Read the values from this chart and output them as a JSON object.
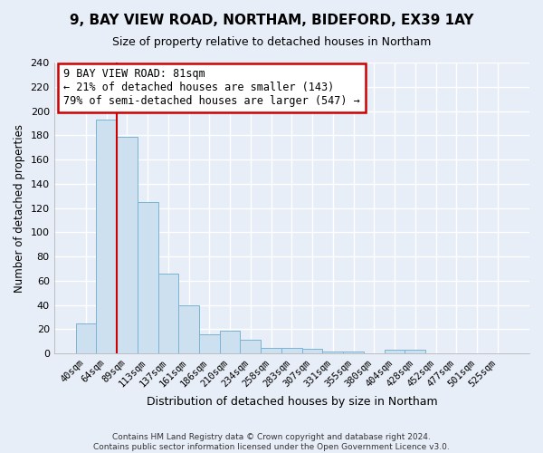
{
  "title": "9, BAY VIEW ROAD, NORTHAM, BIDEFORD, EX39 1AY",
  "subtitle": "Size of property relative to detached houses in Northam",
  "xlabel": "Distribution of detached houses by size in Northam",
  "ylabel": "Number of detached properties",
  "bin_labels": [
    "40sqm",
    "64sqm",
    "89sqm",
    "113sqm",
    "137sqm",
    "161sqm",
    "186sqm",
    "210sqm",
    "234sqm",
    "258sqm",
    "283sqm",
    "307sqm",
    "331sqm",
    "355sqm",
    "380sqm",
    "404sqm",
    "428sqm",
    "452sqm",
    "477sqm",
    "501sqm",
    "525sqm"
  ],
  "bar_heights": [
    25,
    193,
    179,
    125,
    66,
    40,
    16,
    19,
    11,
    5,
    5,
    4,
    2,
    2,
    0,
    3,
    3,
    0,
    0,
    0,
    0
  ],
  "bar_color": "#cce0f0",
  "bar_edge_color": "#7ab4d4",
  "marker_color": "#cc0000",
  "annotation_text": "9 BAY VIEW ROAD: 81sqm\n← 21% of detached houses are smaller (143)\n79% of semi-detached houses are larger (547) →",
  "annotation_box_color": "white",
  "annotation_box_edge_color": "#cc0000",
  "ylim": [
    0,
    240
  ],
  "yticks": [
    0,
    20,
    40,
    60,
    80,
    100,
    120,
    140,
    160,
    180,
    200,
    220,
    240
  ],
  "footer_line1": "Contains HM Land Registry data © Crown copyright and database right 2024.",
  "footer_line2": "Contains public sector information licensed under the Open Government Licence v3.0.",
  "bg_color": "#e8eef8",
  "grid_color": "#ffffff",
  "title_fontsize": 11,
  "subtitle_fontsize": 9
}
